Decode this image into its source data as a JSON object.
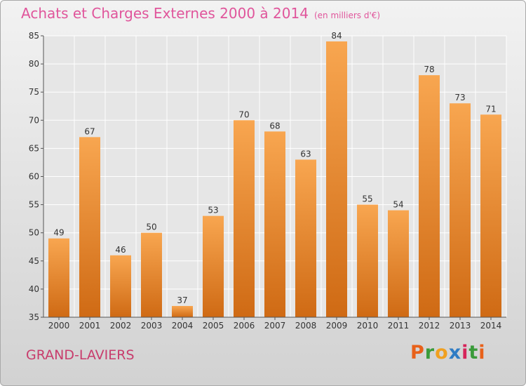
{
  "header": {
    "title": "Achats et Charges Externes 2000 à 2014",
    "unit": "(en milliers d'€)"
  },
  "footer": {
    "commune": "GRAND-LAVIERS",
    "logo_text": "Proxiti",
    "logo_colors": [
      "#e8611a",
      "#3a9b3a",
      "#f0a020",
      "#2f7cc4",
      "#d6245a",
      "#3a9b3a",
      "#e8611a"
    ]
  },
  "colors": {
    "bar_top": "#f8a650",
    "bar_bottom": "#cf6a14",
    "title": "#e0559b",
    "grid": "#ffffff",
    "axis_text": "#333333"
  },
  "chart_data": {
    "type": "bar",
    "title": "Achats et Charges Externes 2000 à 2014",
    "subtitle": "(en milliers d'€)",
    "categories": [
      "2000",
      "2001",
      "2002",
      "2003",
      "2004",
      "2005",
      "2006",
      "2007",
      "2008",
      "2009",
      "2010",
      "2011",
      "2012",
      "2013",
      "2014"
    ],
    "values": [
      49,
      67,
      46,
      50,
      37,
      53,
      70,
      68,
      63,
      84,
      55,
      54,
      78,
      73,
      71
    ],
    "ylim": [
      35,
      85
    ],
    "yticks": [
      35,
      40,
      45,
      50,
      55,
      60,
      65,
      70,
      75,
      80,
      85
    ],
    "grid": true,
    "xlabel": "",
    "ylabel": ""
  }
}
